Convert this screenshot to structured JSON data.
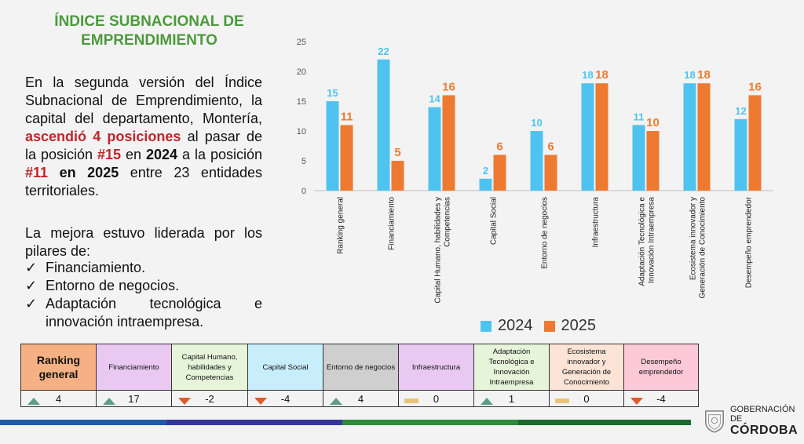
{
  "title_line1": "ÍNDICE SUBNACIONAL DE",
  "title_line2": "EMPRENDIMIENTO",
  "paragraph": {
    "p1": "En la segunda versión del Índice Subnacional de Emprendimiento, la capital del departamento, Montería, ",
    "p2": "ascendió 4 posiciones",
    "p3": " al pasar de la posición ",
    "p4": "#15",
    "p5": " en ",
    "p6": "2024",
    "p7": " a la posición ",
    "p8": "#11",
    "p9": " en ",
    "p10": "2025",
    "p11": " entre 23 entidades territoriales."
  },
  "paragraph2": "La mejora estuvo liderada por los pilares de:",
  "checklist": {
    "check": "✓",
    "i1": "Financiamiento.",
    "i2": "Entorno de negocios.",
    "i3a": "Adaptación tecnológica e",
    "i3b": "innovación intraempresa."
  },
  "chart_data": {
    "type": "bar",
    "categories": [
      [
        "Ranking general"
      ],
      [
        "Financiamiento"
      ],
      [
        "Capital Humano, habilidades y",
        "Competencias"
      ],
      [
        "Capital Social"
      ],
      [
        "Entorno de negocios"
      ],
      [
        "Infraestructura"
      ],
      [
        "Adaptación Tecnológica e",
        "Innovación Intraempresa"
      ],
      [
        "Ecosistema innovador y",
        "Generación de Conocimiento"
      ],
      [
        "Desempeño emprendedor"
      ]
    ],
    "series": [
      {
        "name": "2024",
        "color": "#4fc3ef",
        "values": [
          15,
          22,
          14,
          2,
          10,
          18,
          11,
          18,
          12
        ]
      },
      {
        "name": "2025",
        "color": "#ee7a32",
        "values": [
          11,
          5,
          16,
          6,
          6,
          18,
          10,
          18,
          16
        ]
      }
    ],
    "yticks": [
      "0",
      "5",
      "10",
      "15",
      "20",
      "25"
    ],
    "ylim": [
      0,
      25
    ],
    "legend_position": "bottom"
  },
  "legend": {
    "s1": "2024",
    "s2": "2025"
  },
  "pillars": [
    {
      "label": "Ranking general",
      "bg": "#f5b183",
      "value": "4",
      "trend": "up"
    },
    {
      "label": "Financiamiento",
      "bg": "#e9c9f2",
      "value": "17",
      "trend": "up"
    },
    {
      "label": "Capital Humano, habilidades y Competencias",
      "bg": "#e6f5da",
      "value": "-2",
      "trend": "down"
    },
    {
      "label": "Capital Social",
      "bg": "#c9eefb",
      "value": "-4",
      "trend": "down"
    },
    {
      "label": "Entorno de negocios",
      "bg": "#cfcfcf",
      "value": "4",
      "trend": "up"
    },
    {
      "label": "Infraestructura",
      "bg": "#e9c9f2",
      "value": "0",
      "trend": "flat"
    },
    {
      "label": "Adaptación Tecnológica e Innovación Intraempresa",
      "bg": "#e6f5da",
      "value": "1",
      "trend": "up"
    },
    {
      "label": "Ecosistema innovador y Generación de Conocimiento",
      "bg": "#fbe3d6",
      "value": "0",
      "trend": "flat"
    },
    {
      "label": "Desempeño emprendedor",
      "bg": "#fbc9d8",
      "value": "-4",
      "trend": "down"
    }
  ],
  "colors": {
    "up": "#5e9e86",
    "down": "#e05a28",
    "flat": "#e8c37a",
    "footer": [
      "#1f5aa8",
      "#35389a",
      "#2e8a3d",
      "#1e6b2e"
    ]
  },
  "logo": {
    "line1": "GOBERNACIÓN DE",
    "line2": "CÓRDOBA"
  }
}
